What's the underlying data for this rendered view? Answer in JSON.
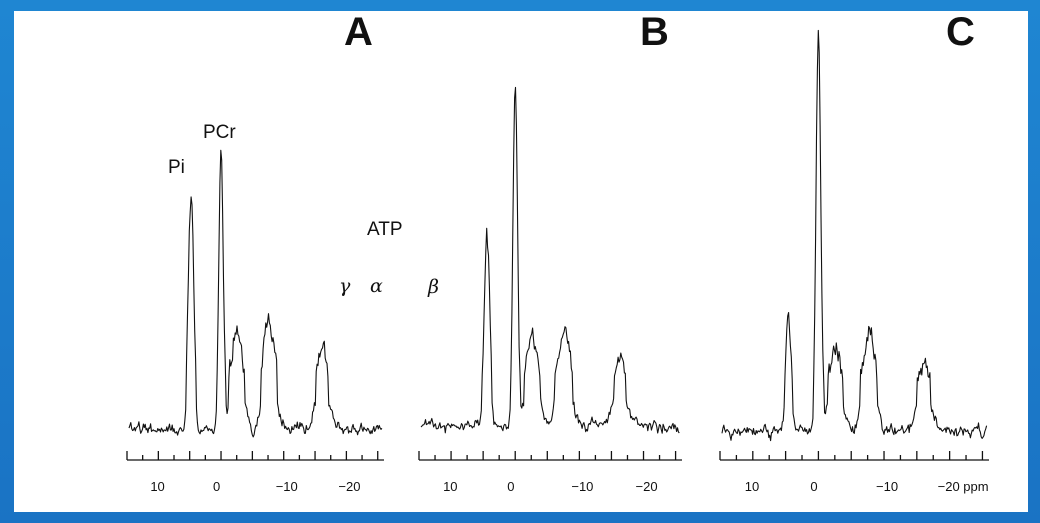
{
  "chart_data": [
    {
      "type": "line",
      "panel": "A",
      "x_ticks": [
        10,
        0,
        -10,
        -20
      ],
      "x_tick_labels": [
        "10",
        "0",
        "−10",
        "−20"
      ],
      "xlim": [
        15,
        -26
      ],
      "annotations": [
        {
          "text": "Pi",
          "x": 4.8
        },
        {
          "text": "PCr",
          "x": 0
        },
        {
          "text": "ATP",
          "x": -10
        },
        {
          "text": "γ",
          "x": -2.7
        },
        {
          "text": "α",
          "x": -7.8
        },
        {
          "text": "β",
          "x": -16.2
        }
      ],
      "peaks": [
        {
          "name": "Pi",
          "x": 4.8,
          "height": 0.96
        },
        {
          "name": "PCr",
          "x": 0,
          "height": 1.09
        },
        {
          "name": "gamma-ATP",
          "x": -2.6,
          "height": 0.36
        },
        {
          "name": "alpha-ATP",
          "x": -7.7,
          "height": 0.42
        },
        {
          "name": "beta-ATP",
          "x": -16.2,
          "height": 0.31
        }
      ]
    },
    {
      "type": "line",
      "panel": "B",
      "x_ticks": [
        10,
        0,
        -10,
        -20
      ],
      "x_tick_labels": [
        "10",
        "0",
        "−10",
        "−20"
      ],
      "xlim": [
        15,
        -26
      ],
      "peaks": [
        {
          "name": "Pi",
          "x": 4.4,
          "height": 0.77
        },
        {
          "name": "PCr",
          "x": 0,
          "height": 1.34
        },
        {
          "name": "gamma-ATP",
          "x": -2.7,
          "height": 0.36
        },
        {
          "name": "alpha-ATP",
          "x": -7.6,
          "height": 0.38
        },
        {
          "name": "beta-ATP",
          "x": -16.3,
          "height": 0.27
        }
      ]
    },
    {
      "type": "line",
      "panel": "C",
      "x_ticks": [
        10,
        0,
        -10,
        -20
      ],
      "x_tick_labels": [
        "10",
        "0",
        "−10",
        "−20 ppm"
      ],
      "xlim": [
        15,
        -26
      ],
      "peaks": [
        {
          "name": "Pi",
          "x": 4.6,
          "height": 0.46
        },
        {
          "name": "PCr",
          "x": 0,
          "height": 1.58
        },
        {
          "name": "gamma-ATP",
          "x": -2.7,
          "height": 0.33
        },
        {
          "name": "alpha-ATP",
          "x": -7.8,
          "height": 0.37
        },
        {
          "name": "beta-ATP",
          "x": -16.2,
          "height": 0.26
        }
      ]
    }
  ]
}
